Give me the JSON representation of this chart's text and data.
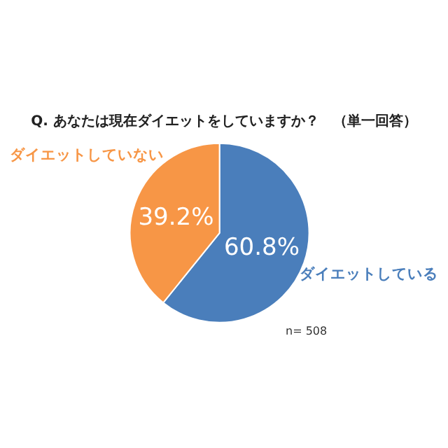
{
  "chart_data": {
    "type": "pie",
    "title": "Q. あなたは現在ダイエットをしていますか？　（単一回答）",
    "categories": [
      "ダイエットしている",
      "ダイエットしていない"
    ],
    "values": [
      60.8,
      39.2
    ],
    "colors": [
      "#4a7ebb",
      "#f79646"
    ],
    "value_labels": [
      "60.8%",
      "39.2%"
    ],
    "annotations": [
      "n= 508"
    ]
  }
}
